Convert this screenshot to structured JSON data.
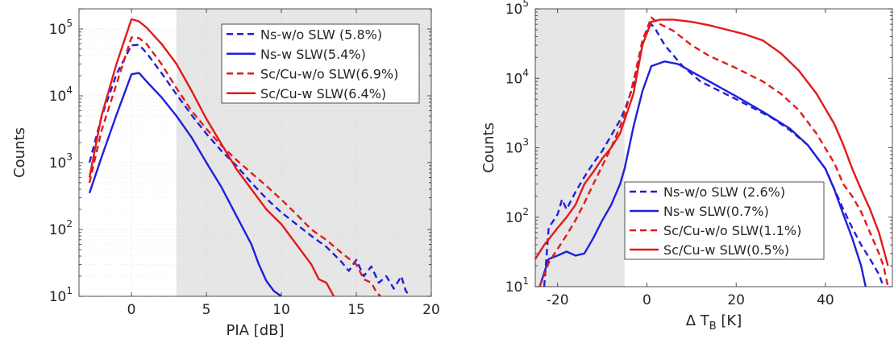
{
  "chart_data": [
    {
      "type": "line",
      "xlabel": "PIA [dB]",
      "ylabel": "Counts",
      "y_scale": "log",
      "xlim": [
        -3.5,
        20
      ],
      "ylim": [
        10,
        200000
      ],
      "xticks": [
        0,
        5,
        10,
        15,
        20
      ],
      "xtick_labels": [
        "0",
        "5",
        "10",
        "15",
        "20"
      ],
      "yticks": [
        10,
        100,
        1000,
        10000,
        100000
      ],
      "ytick_labels": [
        {
          "base": "10",
          "exp": "1"
        },
        {
          "base": "10",
          "exp": "2"
        },
        {
          "base": "10",
          "exp": "3"
        },
        {
          "base": "10",
          "exp": "4"
        },
        {
          "base": "10",
          "exp": "5"
        }
      ],
      "grid": true,
      "shaded_region": {
        "x": [
          3,
          20
        ],
        "color": "#e6e6e6"
      },
      "legend_position": "top-right",
      "series": [
        {
          "name": "Ns-w/o SLW (5.8%)",
          "color": "#1f1fdd",
          "dash": "dashed",
          "points": [
            [
              -2.8,
              1000
            ],
            [
              -2,
              4800
            ],
            [
              -1,
              21000
            ],
            [
              0,
              57000
            ],
            [
              0.5,
              58000
            ],
            [
              1,
              44000
            ],
            [
              2,
              22000
            ],
            [
              3,
              10500
            ],
            [
              4,
              5200
            ],
            [
              5,
              2700
            ],
            [
              6,
              1500
            ],
            [
              7,
              900
            ],
            [
              8,
              500
            ],
            [
              9,
              290
            ],
            [
              10,
              180
            ],
            [
              11,
              120
            ],
            [
              12,
              80
            ],
            [
              13,
              55
            ],
            [
              14,
              33
            ],
            [
              14.5,
              24
            ],
            [
              15,
              35
            ],
            [
              15.5,
              20
            ],
            [
              16,
              28
            ],
            [
              16.5,
              16
            ],
            [
              17,
              20
            ],
            [
              17.5,
              13
            ],
            [
              18,
              20
            ],
            [
              18.3,
              12
            ],
            [
              18.6,
              10
            ]
          ]
        },
        {
          "name": "Ns-w SLW(5.4%)",
          "color": "#1f1fdd",
          "dash": "solid",
          "points": [
            [
              -2.8,
              350
            ],
            [
              -2,
              1200
            ],
            [
              -1,
              5200
            ],
            [
              0,
              21000
            ],
            [
              0.5,
              22000
            ],
            [
              1,
              16500
            ],
            [
              2,
              9500
            ],
            [
              3,
              5000
            ],
            [
              4,
              2400
            ],
            [
              5,
              1000
            ],
            [
              6,
              430
            ],
            [
              7,
              160
            ],
            [
              8,
              60
            ],
            [
              8.5,
              30
            ],
            [
              9,
              17
            ],
            [
              9.5,
              12
            ],
            [
              10,
              10
            ]
          ]
        },
        {
          "name": "Sc/Cu-w/o SLW(6.9%)",
          "color": "#e31a1a",
          "dash": "dashed",
          "points": [
            [
              -2.8,
              500
            ],
            [
              -2,
              3000
            ],
            [
              -1,
              15000
            ],
            [
              0,
              75000
            ],
            [
              0.5,
              73000
            ],
            [
              1,
              60000
            ],
            [
              2,
              30000
            ],
            [
              3,
              13000
            ],
            [
              4,
              6000
            ],
            [
              5,
              3200
            ],
            [
              6,
              1800
            ],
            [
              7,
              1100
            ],
            [
              8,
              700
            ],
            [
              9,
              450
            ],
            [
              10,
              280
            ],
            [
              11,
              170
            ],
            [
              12,
              100
            ],
            [
              13,
              70
            ],
            [
              14,
              45
            ],
            [
              15,
              30
            ],
            [
              15.5,
              18
            ],
            [
              16,
              16
            ],
            [
              16.3,
              12
            ],
            [
              16.6,
              10
            ]
          ]
        },
        {
          "name": "Sc/Cu-w SLW(6.4%)",
          "color": "#e31a1a",
          "dash": "solid",
          "points": [
            [
              -2.8,
              600
            ],
            [
              -2,
              5000
            ],
            [
              -1,
              30000
            ],
            [
              0,
              140000
            ],
            [
              0.5,
              130000
            ],
            [
              1,
              105000
            ],
            [
              2,
              60000
            ],
            [
              3,
              30000
            ],
            [
              4,
              12000
            ],
            [
              5,
              4500
            ],
            [
              6,
              1900
            ],
            [
              7,
              800
            ],
            [
              8,
              400
            ],
            [
              9,
              200
            ],
            [
              10,
              120
            ],
            [
              11,
              60
            ],
            [
              12,
              30
            ],
            [
              12.5,
              18
            ],
            [
              13,
              16
            ],
            [
              13.5,
              10
            ]
          ]
        }
      ]
    },
    {
      "type": "line",
      "xlabel": "Δ T",
      "xlabel_sub": "B",
      "xlabel_unit": " [K]",
      "ylabel": "Counts",
      "y_scale": "log",
      "xlim": [
        -25,
        55
      ],
      "ylim": [
        10,
        100000
      ],
      "xticks": [
        -20,
        0,
        20,
        40
      ],
      "xtick_labels": [
        "-20",
        "0",
        "20",
        "40"
      ],
      "yticks": [
        10,
        100,
        1000,
        10000,
        100000
      ],
      "ytick_labels": [
        {
          "base": "10",
          "exp": "1"
        },
        {
          "base": "10",
          "exp": "2"
        },
        {
          "base": "10",
          "exp": "3"
        },
        {
          "base": "10",
          "exp": "4"
        },
        {
          "base": "10",
          "exp": "5"
        }
      ],
      "grid": false,
      "shaded_region": {
        "x": [
          -25,
          -5
        ],
        "color": "#e6e6e6"
      },
      "legend_position": "bottom-left",
      "series": [
        {
          "name": "Ns-w/o SLW (2.6%)",
          "color": "#1f1fdd",
          "dash": "dashed",
          "points": [
            [
              -23,
              10
            ],
            [
              -22,
              70
            ],
            [
              -20,
              110
            ],
            [
              -19,
              180
            ],
            [
              -18,
              130
            ],
            [
              -16,
              230
            ],
            [
              -14,
              380
            ],
            [
              -12,
              600
            ],
            [
              -10,
              900
            ],
            [
              -8,
              1500
            ],
            [
              -6,
              2500
            ],
            [
              -5,
              3500
            ],
            [
              -3,
              8000
            ],
            [
              -1,
              30000
            ],
            [
              0,
              50000
            ],
            [
              1,
              60000
            ],
            [
              2,
              50000
            ],
            [
              4,
              30000
            ],
            [
              8,
              15000
            ],
            [
              12,
              9000
            ],
            [
              20,
              5000
            ],
            [
              28,
              2700
            ],
            [
              32,
              1800
            ],
            [
              36,
              1100
            ],
            [
              40,
              500
            ],
            [
              44,
              130
            ],
            [
              46,
              70
            ],
            [
              48,
              40
            ],
            [
              50,
              25
            ],
            [
              52,
              15
            ],
            [
              53,
              10
            ]
          ]
        },
        {
          "name": "Ns-w SLW(0.7%)",
          "color": "#1f1fdd",
          "dash": "solid",
          "points": [
            [
              -24,
              10
            ],
            [
              -22,
              25
            ],
            [
              -20,
              28
            ],
            [
              -18,
              32
            ],
            [
              -16,
              28
            ],
            [
              -14,
              30
            ],
            [
              -12,
              50
            ],
            [
              -10,
              90
            ],
            [
              -8,
              150
            ],
            [
              -6,
              300
            ],
            [
              -5,
              500
            ],
            [
              -3,
              2000
            ],
            [
              -1,
              6500
            ],
            [
              1,
              15000
            ],
            [
              4,
              17500
            ],
            [
              7,
              16000
            ],
            [
              10,
              12500
            ],
            [
              14,
              9000
            ],
            [
              20,
              5500
            ],
            [
              26,
              3300
            ],
            [
              32,
              1900
            ],
            [
              36,
              1100
            ],
            [
              40,
              500
            ],
            [
              42,
              250
            ],
            [
              44,
              110
            ],
            [
              46,
              50
            ],
            [
              48,
              20
            ],
            [
              49,
              10
            ]
          ]
        },
        {
          "name": "Sc/Cu-w/o SLW(1.1%)",
          "color": "#e31a1a",
          "dash": "dashed",
          "points": [
            [
              -24,
              10
            ],
            [
              -22,
              22
            ],
            [
              -20,
              35
            ],
            [
              -18,
              55
            ],
            [
              -16,
              90
            ],
            [
              -14,
              160
            ],
            [
              -12,
              300
            ],
            [
              -10,
              550
            ],
            [
              -8,
              1000
            ],
            [
              -6,
              2000
            ],
            [
              -5,
              3000
            ],
            [
              -3,
              9000
            ],
            [
              -1,
              35000
            ],
            [
              1,
              75000
            ],
            [
              3,
              60000
            ],
            [
              6,
              48000
            ],
            [
              10,
              30000
            ],
            [
              14,
              21000
            ],
            [
              20,
              14000
            ],
            [
              26,
              9000
            ],
            [
              30,
              6000
            ],
            [
              34,
              3500
            ],
            [
              38,
              1600
            ],
            [
              42,
              600
            ],
            [
              44,
              300
            ],
            [
              46,
              200
            ],
            [
              48,
              120
            ],
            [
              50,
              60
            ],
            [
              52,
              30
            ],
            [
              53,
              20
            ],
            [
              54,
              10
            ]
          ]
        },
        {
          "name": "Sc/Cu-w SLW(0.5%)",
          "color": "#e31a1a",
          "dash": "solid",
          "points": [
            [
              -25,
              25
            ],
            [
              -23,
              40
            ],
            [
              -20,
              70
            ],
            [
              -18,
              100
            ],
            [
              -16,
              150
            ],
            [
              -14,
              300
            ],
            [
              -12,
              450
            ],
            [
              -10,
              700
            ],
            [
              -8,
              1000
            ],
            [
              -6,
              1600
            ],
            [
              -5,
              2500
            ],
            [
              -3,
              6000
            ],
            [
              -1,
              30000
            ],
            [
              1,
              65000
            ],
            [
              3,
              70000
            ],
            [
              6,
              70000
            ],
            [
              10,
              65000
            ],
            [
              14,
              58000
            ],
            [
              18,
              50000
            ],
            [
              22,
              43000
            ],
            [
              26,
              35000
            ],
            [
              30,
              23000
            ],
            [
              34,
              13000
            ],
            [
              38,
              6000
            ],
            [
              42,
              2200
            ],
            [
              44,
              1100
            ],
            [
              46,
              500
            ],
            [
              48,
              250
            ],
            [
              50,
              130
            ],
            [
              52,
              60
            ],
            [
              53,
              35
            ],
            [
              54,
              20
            ]
          ]
        }
      ]
    }
  ]
}
